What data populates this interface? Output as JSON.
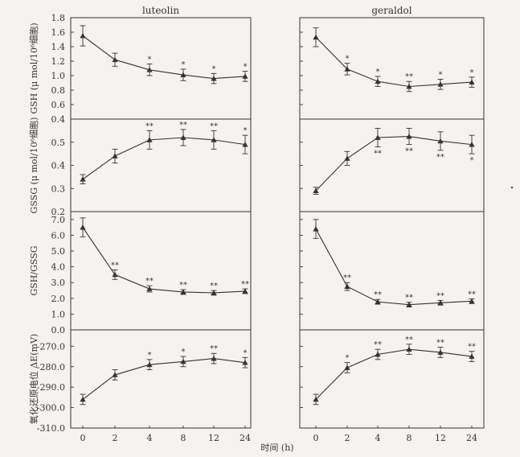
{
  "chart_data": {
    "type": "line",
    "xlabel": "时间 (h)",
    "x_categories": [
      "0",
      "2",
      "4",
      "8",
      "12",
      "24"
    ],
    "columns": [
      {
        "title": "luteolin"
      },
      {
        "title": "geraldol"
      }
    ],
    "rows": [
      {
        "ylabel": "GSH (μ mol/10⁶细胞)",
        "ylim": [
          0.4,
          1.8
        ],
        "ytick_labels": [
          "0.4",
          "0.6",
          "0.8",
          "1.0",
          "1.2",
          "1.4",
          "1.6",
          "1.8"
        ],
        "panels": [
          {
            "series": "luteolin",
            "values": [
              1.55,
              1.22,
              1.08,
              1.01,
              0.96,
              0.99
            ],
            "errors": [
              0.14,
              0.09,
              0.08,
              0.08,
              0.07,
              0.07
            ],
            "annotations": [
              "",
              "",
              "*",
              "*",
              "*",
              "*"
            ],
            "annotation_pos": "above"
          },
          {
            "series": "geraldol",
            "values": [
              1.53,
              1.09,
              0.92,
              0.85,
              0.88,
              0.91
            ],
            "errors": [
              0.13,
              0.08,
              0.07,
              0.07,
              0.07,
              0.07
            ],
            "annotations": [
              "",
              "*",
              "*",
              "**",
              "*",
              "*"
            ],
            "annotation_pos": "above"
          }
        ]
      },
      {
        "ylabel": "GSSG (μ mol/10⁶细胞)",
        "ylim": [
          0.2,
          0.6
        ],
        "ytick_labels": [
          "0.2",
          "0.3",
          "0.4",
          "0.5"
        ],
        "panels": [
          {
            "series": "luteolin",
            "values": [
              0.34,
              0.44,
              0.51,
              0.52,
              0.51,
              0.49
            ],
            "errors": [
              0.02,
              0.03,
              0.04,
              0.035,
              0.04,
              0.04
            ],
            "annotations": [
              "",
              "",
              "**",
              "**",
              "**",
              "*"
            ],
            "annotation_pos": "above"
          },
          {
            "series": "geraldol",
            "values": [
              0.29,
              0.43,
              0.52,
              0.525,
              0.505,
              0.49
            ],
            "errors": [
              0.015,
              0.03,
              0.04,
              0.035,
              0.04,
              0.04
            ],
            "annotations": [
              "",
              "",
              "**",
              "**",
              "**",
              "*"
            ],
            "annotation_pos": "below"
          }
        ]
      },
      {
        "ylabel": "GSH/GSSG",
        "ylim": [
          0.0,
          7.5
        ],
        "ytick_labels": [
          "0.0",
          "1.0",
          "2.0",
          "3.0",
          "4.0",
          "5.0",
          "6.0",
          "7.0"
        ],
        "panels": [
          {
            "series": "luteolin",
            "values": [
              6.5,
              3.5,
              2.6,
              2.4,
              2.35,
              2.45
            ],
            "errors": [
              0.6,
              0.3,
              0.2,
              0.15,
              0.15,
              0.15
            ],
            "annotations": [
              "",
              "**",
              "**",
              "**",
              "**",
              "**"
            ],
            "annotation_pos": "above"
          },
          {
            "series": "geraldol",
            "values": [
              6.4,
              2.75,
              1.78,
              1.6,
              1.72,
              1.82
            ],
            "errors": [
              0.6,
              0.25,
              0.15,
              0.15,
              0.15,
              0.15
            ],
            "annotations": [
              "",
              "**",
              "**",
              "**",
              "**",
              "**"
            ],
            "annotation_pos": "above"
          }
        ]
      },
      {
        "ylabel": "氧化还原电位 ΔE(mV)",
        "ylim": [
          -310,
          -262
        ],
        "ytick_labels": [
          "-310.0",
          "-300.0",
          "-290.0",
          "-280.0",
          "-270.0"
        ],
        "panels": [
          {
            "series": "luteolin",
            "values": [
              -296,
              -284,
              -279,
              -277.5,
              -276,
              -278
            ],
            "errors": [
              2.5,
              2.5,
              2.5,
              2.5,
              2.5,
              2.5
            ],
            "annotations": [
              "",
              "",
              "*",
              "*",
              "**",
              "*"
            ],
            "annotation_pos": "above"
          },
          {
            "series": "geraldol",
            "values": [
              -296,
              -280.5,
              -274,
              -271.5,
              -273,
              -275
            ],
            "errors": [
              2.5,
              2.5,
              2.5,
              2.5,
              2.5,
              2.5
            ],
            "annotations": [
              "",
              "*",
              "**",
              "**",
              "**",
              "**"
            ],
            "annotation_pos": "above"
          }
        ]
      }
    ]
  }
}
